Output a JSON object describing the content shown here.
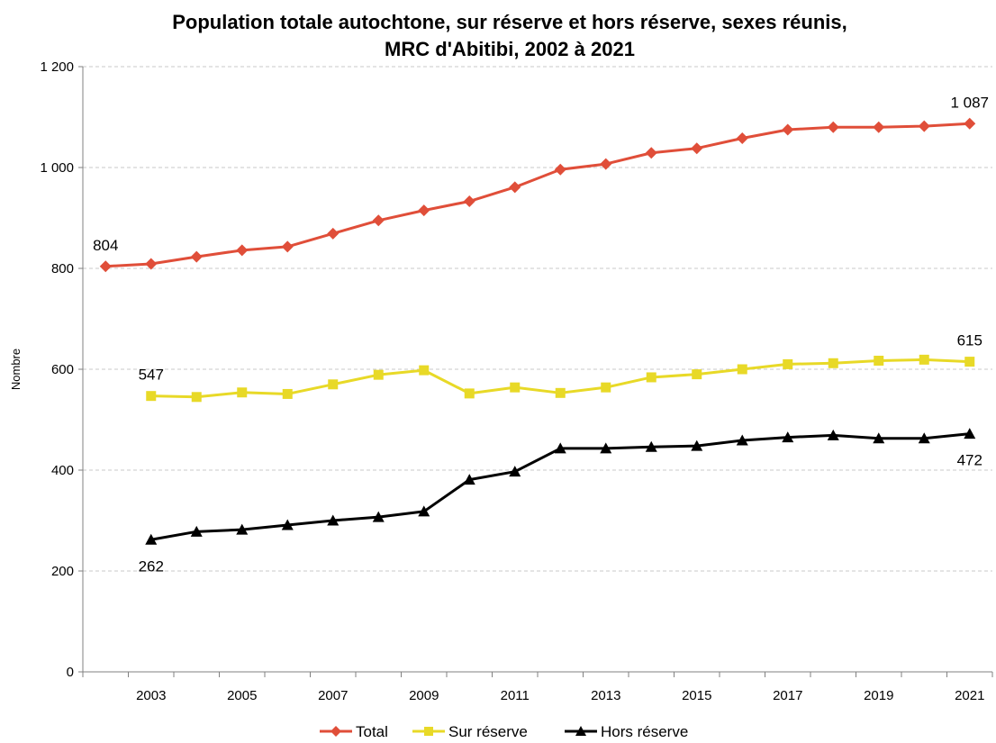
{
  "chart_data": {
    "type": "line",
    "title_line1": "Population totale autochtone, sur réserve et hors réserve, sexes réunis,",
    "title_line2": "MRC d'Abitibi, 2002 à 2021",
    "ylabel": "Nombre",
    "xlabel": "",
    "ylim": [
      0,
      1200
    ],
    "yticks": [
      0,
      200,
      400,
      600,
      800,
      1000,
      1200
    ],
    "ytick_labels": [
      "0",
      "200",
      "400",
      "600",
      "800",
      "1 000",
      "1 200"
    ],
    "x": [
      2002,
      2003,
      2004,
      2005,
      2006,
      2007,
      2008,
      2009,
      2010,
      2011,
      2012,
      2013,
      2014,
      2015,
      2016,
      2017,
      2018,
      2019,
      2020,
      2021
    ],
    "xtick_labels": [
      "2003",
      "2005",
      "2007",
      "2009",
      "2011",
      "2013",
      "2015",
      "2017",
      "2019",
      "2021"
    ],
    "grid": true,
    "legend_position": "bottom",
    "series": [
      {
        "name": "Total",
        "color": "#e04e39",
        "marker": "diamond",
        "values": [
          804,
          809,
          823,
          836,
          843,
          869,
          895,
          915,
          933,
          961,
          996,
          1007,
          1029,
          1038,
          1058,
          1075,
          1080,
          1080,
          1082,
          1087
        ]
      },
      {
        "name": "Sur réserve",
        "color": "#e8d927",
        "marker": "square",
        "values": [
          null,
          547,
          545,
          554,
          551,
          570,
          589,
          598,
          552,
          564,
          553,
          564,
          584,
          590,
          600,
          610,
          612,
          617,
          619,
          615
        ]
      },
      {
        "name": "Hors réserve",
        "color": "#000000",
        "marker": "triangle",
        "values": [
          null,
          262,
          278,
          282,
          291,
          300,
          307,
          318,
          381,
          397,
          443,
          443,
          446,
          448,
          459,
          465,
          469,
          463,
          463,
          472
        ]
      }
    ],
    "annotations": [
      {
        "series": 0,
        "index": 0,
        "text": "804",
        "pos": "above"
      },
      {
        "series": 0,
        "index": 19,
        "text": "1 087",
        "pos": "above"
      },
      {
        "series": 1,
        "index": 1,
        "text": "547",
        "pos": "above"
      },
      {
        "series": 1,
        "index": 19,
        "text": "615",
        "pos": "above"
      },
      {
        "series": 2,
        "index": 1,
        "text": "262",
        "pos": "below"
      },
      {
        "series": 2,
        "index": 19,
        "text": "472",
        "pos": "below"
      }
    ]
  }
}
